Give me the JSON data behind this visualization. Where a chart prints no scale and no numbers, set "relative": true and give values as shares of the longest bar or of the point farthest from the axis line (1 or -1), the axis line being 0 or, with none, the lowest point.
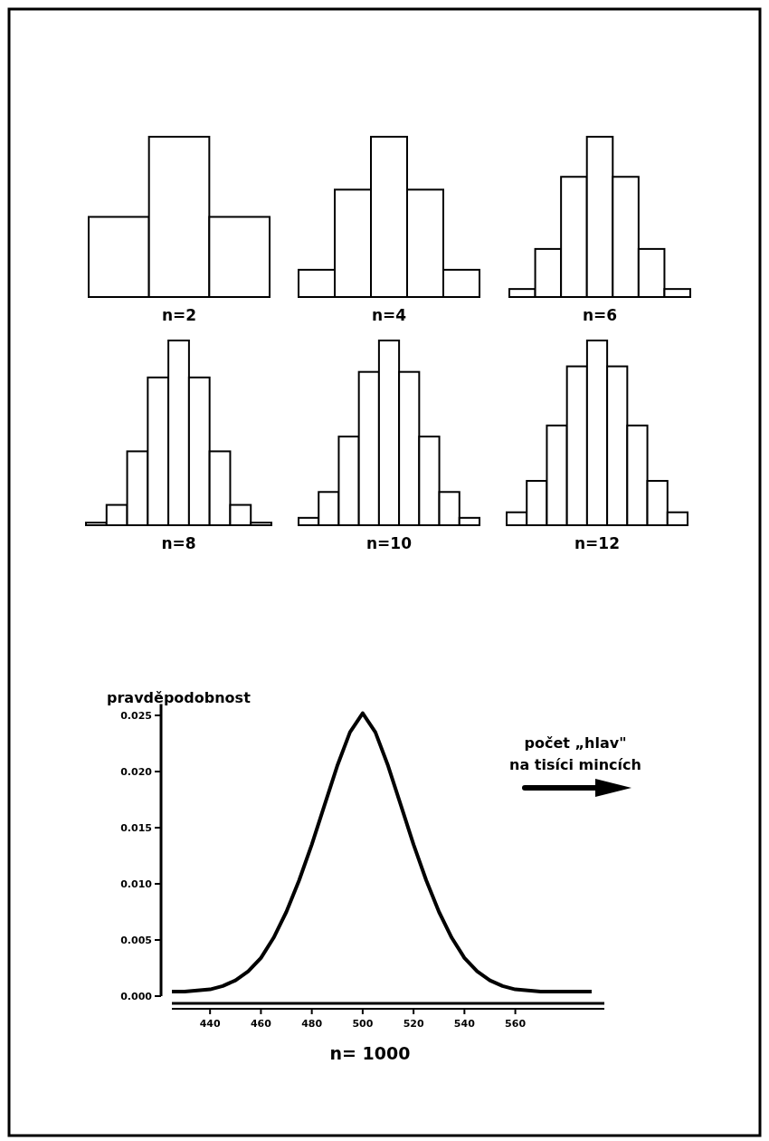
{
  "chart_data": [
    {
      "type": "bar",
      "relative": true,
      "categories": [
        null,
        null,
        null
      ],
      "values": [
        0.5,
        1,
        0.5
      ],
      "color": "#ffffff",
      "xlabel": "n=2"
    },
    {
      "type": "bar",
      "relative": true,
      "categories": [
        null,
        null,
        null,
        null,
        null
      ],
      "values": [
        0.17,
        0.67,
        1,
        0.67,
        0.17
      ],
      "color": "#ffffff",
      "xlabel": "n=4"
    },
    {
      "type": "bar",
      "relative": true,
      "categories": [
        null,
        null,
        null,
        null,
        null,
        null,
        null
      ],
      "values": [
        0.05,
        0.3,
        0.75,
        1,
        0.75,
        0.3,
        0.05
      ],
      "color": "#ffffff",
      "xlabel": "n=6"
    },
    {
      "type": "bar",
      "relative": true,
      "categories": [
        null,
        null,
        null,
        null,
        null,
        null,
        null,
        null,
        null
      ],
      "values": [
        0.014,
        0.11,
        0.4,
        0.8,
        1,
        0.8,
        0.4,
        0.11,
        0.014
      ],
      "color": "#ffffff",
      "xlabel": "n=8"
    },
    {
      "type": "bar",
      "relative": true,
      "categories": [
        null,
        null,
        null,
        null,
        null,
        null,
        null,
        null,
        null
      ],
      "values": [
        0.04,
        0.18,
        0.48,
        0.83,
        1,
        0.83,
        0.48,
        0.18,
        0.04
      ],
      "color": "#ffffff",
      "xlabel": "n=10"
    },
    {
      "type": "bar",
      "relative": true,
      "categories": [
        null,
        null,
        null,
        null,
        null,
        null,
        null,
        null,
        null
      ],
      "values": [
        0.07,
        0.24,
        0.54,
        0.86,
        1,
        0.86,
        0.54,
        0.24,
        0.07
      ],
      "color": "#ffffff",
      "xlabel": "n=12"
    },
    {
      "type": "line",
      "x": [
        425,
        430,
        435,
        440,
        445,
        450,
        455,
        460,
        465,
        470,
        475,
        480,
        485,
        490,
        495,
        500,
        505,
        510,
        515,
        520,
        525,
        530,
        535,
        540,
        545,
        550,
        555,
        560,
        565,
        570,
        575,
        580,
        585,
        590
      ],
      "values": [
        0.0004,
        0.0004,
        0.0005,
        0.0006,
        0.0009,
        0.0014,
        0.0022,
        0.0034,
        0.0052,
        0.0075,
        0.0103,
        0.0135,
        0.017,
        0.0205,
        0.0235,
        0.0252,
        0.0235,
        0.0205,
        0.017,
        0.0135,
        0.0103,
        0.0075,
        0.0052,
        0.0034,
        0.0022,
        0.0014,
        0.0009,
        0.0006,
        0.0005,
        0.0004,
        0.0004,
        0.0004,
        0.0004,
        0.0004
      ],
      "color": "#000000",
      "xlim": [
        425,
        595
      ],
      "xticks": [
        440,
        460,
        480,
        500,
        520,
        540,
        560
      ],
      "ylim": [
        0,
        0.026
      ],
      "yticks": [
        {
          "value": 0,
          "label": "0.000"
        },
        {
          "value": 0.005,
          "label": "0.005"
        },
        {
          "value": 0.01,
          "label": "0.010"
        },
        {
          "value": 0.015,
          "label": "0.015"
        },
        {
          "value": 0.02,
          "label": "0.020"
        },
        {
          "value": 0.025,
          "label": "0.025"
        }
      ],
      "ylabel": "pravděpodobnost",
      "xlabel": "n= 1000",
      "annotations": [
        "počet „hlav\"\nna tisíci mincích"
      ]
    }
  ]
}
